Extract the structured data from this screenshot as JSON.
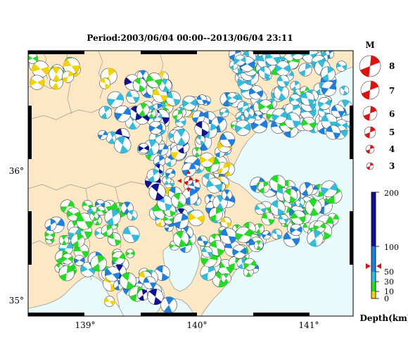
{
  "title": "Period:2003/06/04 00:00--2013/06/04 23:11",
  "axes": {
    "lon_ticks": [
      "139°",
      "140°",
      "141°"
    ],
    "lat_ticks": [
      "36°",
      "35°"
    ]
  },
  "magnitude_legend": {
    "header": "M",
    "levels": [
      "8",
      "7",
      "6",
      "5",
      "4",
      "3"
    ]
  },
  "depth_legend": {
    "title": "Depth(km)",
    "labels": [
      "200",
      "100",
      "50",
      "30",
      "10",
      "0"
    ],
    "colors": {
      "shallow": "#f2d200",
      "mid_shallow": "#22dd22",
      "mid": "#33bbdd",
      "deep": "#1e7fe0",
      "deepest": "#10109a"
    }
  },
  "colors": {
    "land": "#fde8c6",
    "sea": "#e8fafa",
    "coast": "#9a9a9a",
    "frame": "#000000",
    "mainshock": "#e01010"
  },
  "map_data": {
    "lon_range": [
      138.5,
      141.5
    ],
    "lat_range": [
      34.85,
      36.95
    ],
    "mainshock": {
      "lon": 139.98,
      "lat": 35.92,
      "depth_km": 55
    }
  }
}
